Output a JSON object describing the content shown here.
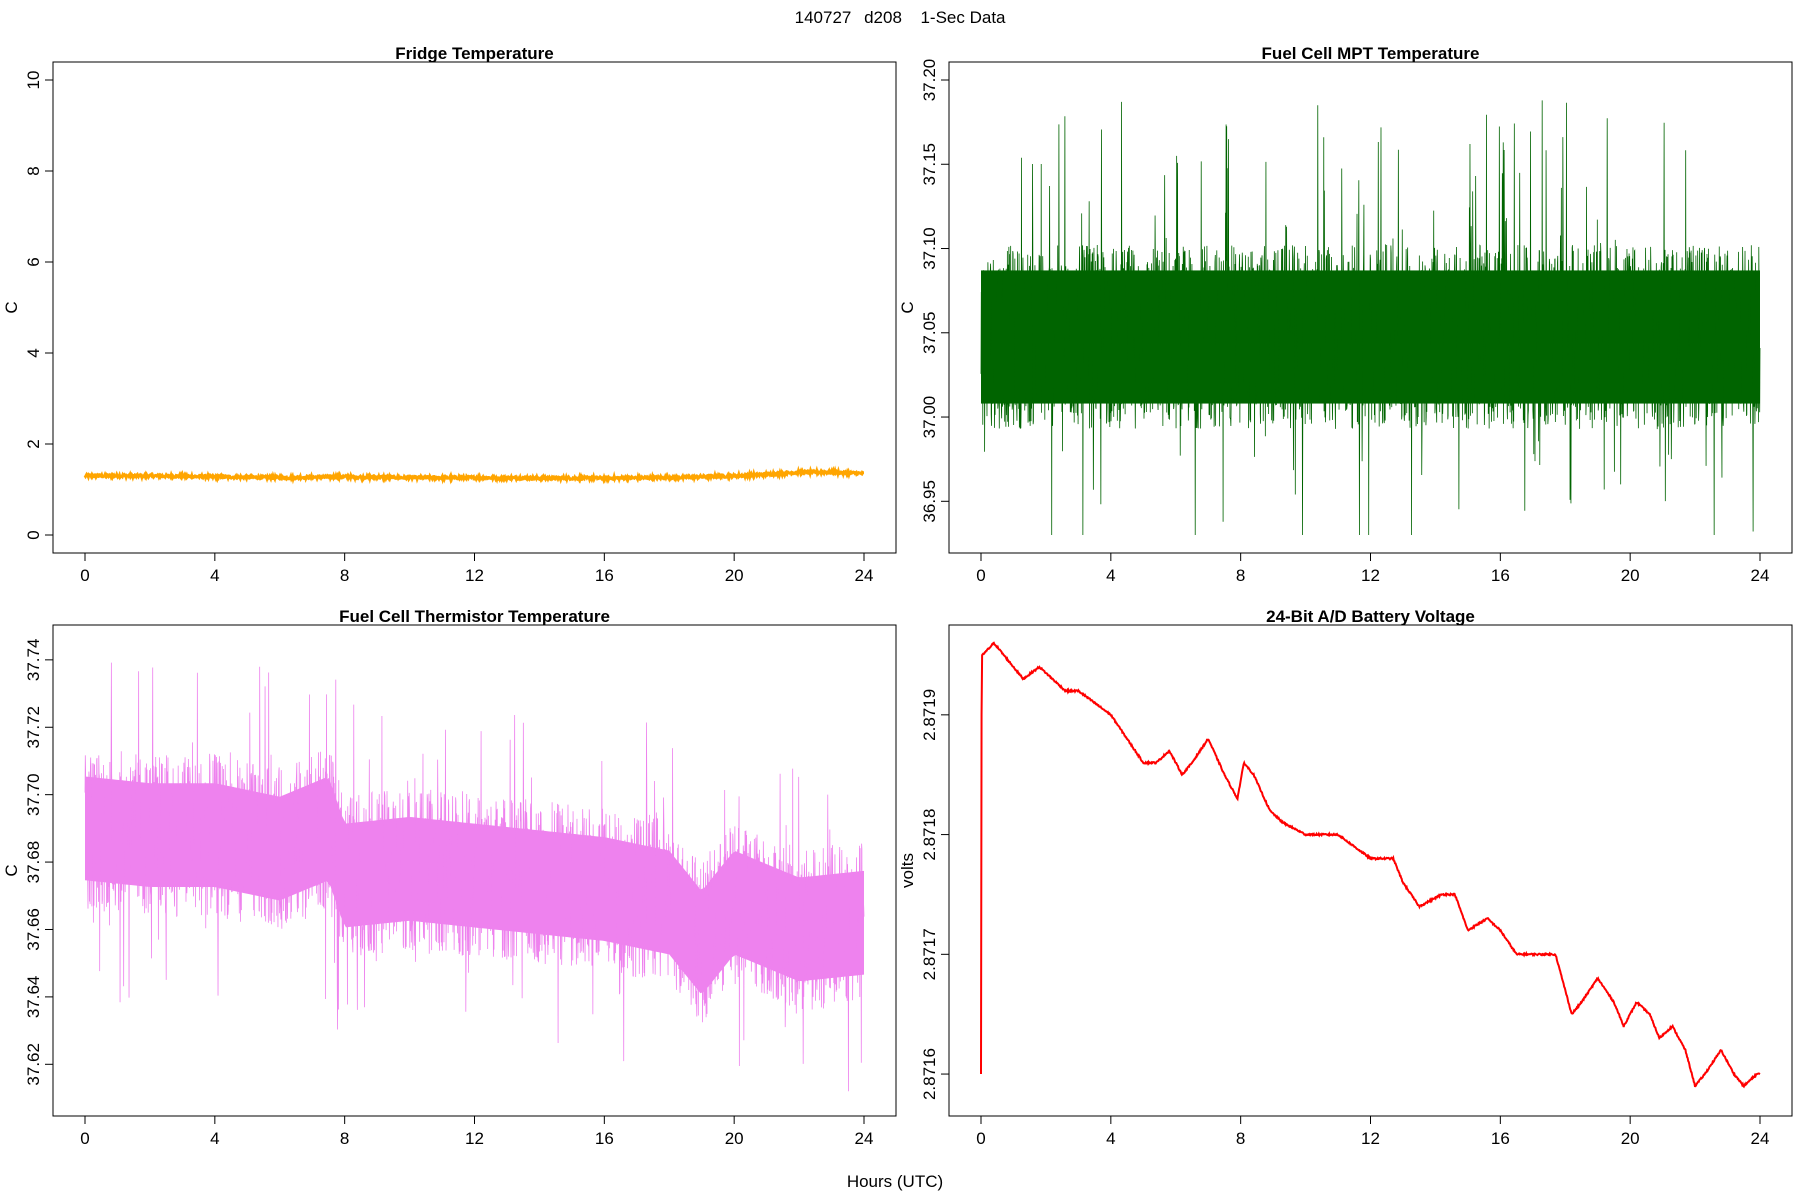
{
  "figure": {
    "title_parts": [
      "140727",
      "d208",
      "1-Sec Data"
    ],
    "xlabel": "Hours (UTC)"
  },
  "chart_data": [
    {
      "type": "line",
      "title": "Fridge Temperature",
      "ylabel": "C",
      "xlim": [
        0,
        24
      ],
      "ylim": [
        0,
        10
      ],
      "xticks": [
        0,
        4,
        8,
        12,
        16,
        20,
        24
      ],
      "yticks": [
        "0",
        "2",
        "4",
        "6",
        "8",
        "10"
      ],
      "color": "#FFA500",
      "series": [
        {
          "x": [
            0,
            2,
            4,
            6,
            8,
            10,
            12,
            14,
            16,
            18,
            20,
            21,
            22,
            23,
            24
          ],
          "y": [
            1.3,
            1.3,
            1.28,
            1.26,
            1.28,
            1.26,
            1.26,
            1.25,
            1.25,
            1.26,
            1.3,
            1.33,
            1.38,
            1.38,
            1.35
          ]
        }
      ],
      "noise_band": 0.03
    },
    {
      "type": "line",
      "title": "Fuel Cell MPT Temperature",
      "ylabel": "C",
      "xlim": [
        0,
        24
      ],
      "ylim": [
        36.93,
        37.2
      ],
      "xticks": [
        0,
        4,
        8,
        12,
        16,
        20,
        24
      ],
      "yticks": [
        "36.95",
        "37.00",
        "37.05",
        "37.10",
        "37.15",
        "37.20"
      ],
      "color": "#006400",
      "series": [
        {
          "x": [
            0,
            24
          ],
          "y": [
            37.045,
            37.045
          ]
        }
      ],
      "band": [
        37.0,
        37.095
      ],
      "extremes": [
        36.93,
        37.19
      ]
    },
    {
      "type": "line",
      "title": "Fuel Cell Thermistor Temperature",
      "ylabel": "C",
      "xlim": [
        0,
        24
      ],
      "ylim": [
        37.61,
        37.745
      ],
      "xticks": [
        0,
        4,
        8,
        12,
        16,
        20,
        24
      ],
      "yticks": [
        "37.62",
        "37.64",
        "37.66",
        "37.68",
        "37.70",
        "37.72",
        "37.74"
      ],
      "color": "#EE82EE",
      "series": [
        {
          "x": [
            0,
            2,
            4,
            6,
            7.5,
            8,
            10,
            12,
            14,
            16,
            18,
            19,
            20,
            22,
            24
          ],
          "y": [
            37.69,
            37.688,
            37.688,
            37.684,
            37.69,
            37.676,
            37.678,
            37.676,
            37.674,
            37.672,
            37.668,
            37.656,
            37.668,
            37.66,
            37.662
          ]
        }
      ],
      "band_halfwidth": 0.022,
      "extremes": [
        37.612,
        37.745
      ]
    },
    {
      "type": "line",
      "title": "24-Bit A/D Battery Voltage",
      "ylabel": "volts",
      "xlim": [
        0,
        24
      ],
      "ylim": [
        2.87158,
        2.87196
      ],
      "xticks": [
        0,
        4,
        8,
        12,
        16,
        20,
        24
      ],
      "yticks": [
        "2.8716",
        "2.8717",
        "2.8718",
        "2.8719"
      ],
      "color": "#FF0000",
      "series": [
        {
          "x": [
            0,
            0.02,
            0.05,
            0.4,
            1.0,
            1.3,
            1.8,
            2.2,
            2.6,
            3.0,
            3.5,
            4.0,
            4.5,
            5.0,
            5.4,
            5.8,
            6.2,
            6.5,
            7.0,
            7.5,
            7.9,
            8.1,
            8.4,
            8.9,
            9.3,
            10.0,
            10.6,
            11.0,
            11.5,
            12.0,
            12.7,
            13.0,
            13.5,
            14.2,
            14.6,
            15.0,
            15.6,
            16.0,
            16.5,
            17.0,
            17.7,
            18.2,
            18.5,
            19.0,
            19.5,
            19.8,
            20.2,
            20.6,
            20.9,
            21.3,
            21.7,
            22.0,
            22.3,
            22.8,
            23.2,
            23.5,
            23.9,
            24.0
          ],
          "y": [
            2.8716,
            2.87195,
            2.87195,
            2.87196,
            2.87194,
            2.87193,
            2.87194,
            2.87193,
            2.87192,
            2.87192,
            2.87191,
            2.8719,
            2.87188,
            2.87186,
            2.87186,
            2.87187,
            2.87185,
            2.87186,
            2.87188,
            2.87185,
            2.87183,
            2.87186,
            2.87185,
            2.87182,
            2.87181,
            2.8718,
            2.8718,
            2.8718,
            2.87179,
            2.87178,
            2.87178,
            2.87176,
            2.87174,
            2.87175,
            2.87175,
            2.87172,
            2.87173,
            2.87172,
            2.8717,
            2.8717,
            2.8717,
            2.87165,
            2.87166,
            2.87168,
            2.87166,
            2.87164,
            2.87166,
            2.87165,
            2.87163,
            2.87164,
            2.87162,
            2.87159,
            2.8716,
            2.87162,
            2.8716,
            2.87159,
            2.8716,
            2.8716
          ]
        }
      ],
      "noise_band": 7e-07
    }
  ]
}
